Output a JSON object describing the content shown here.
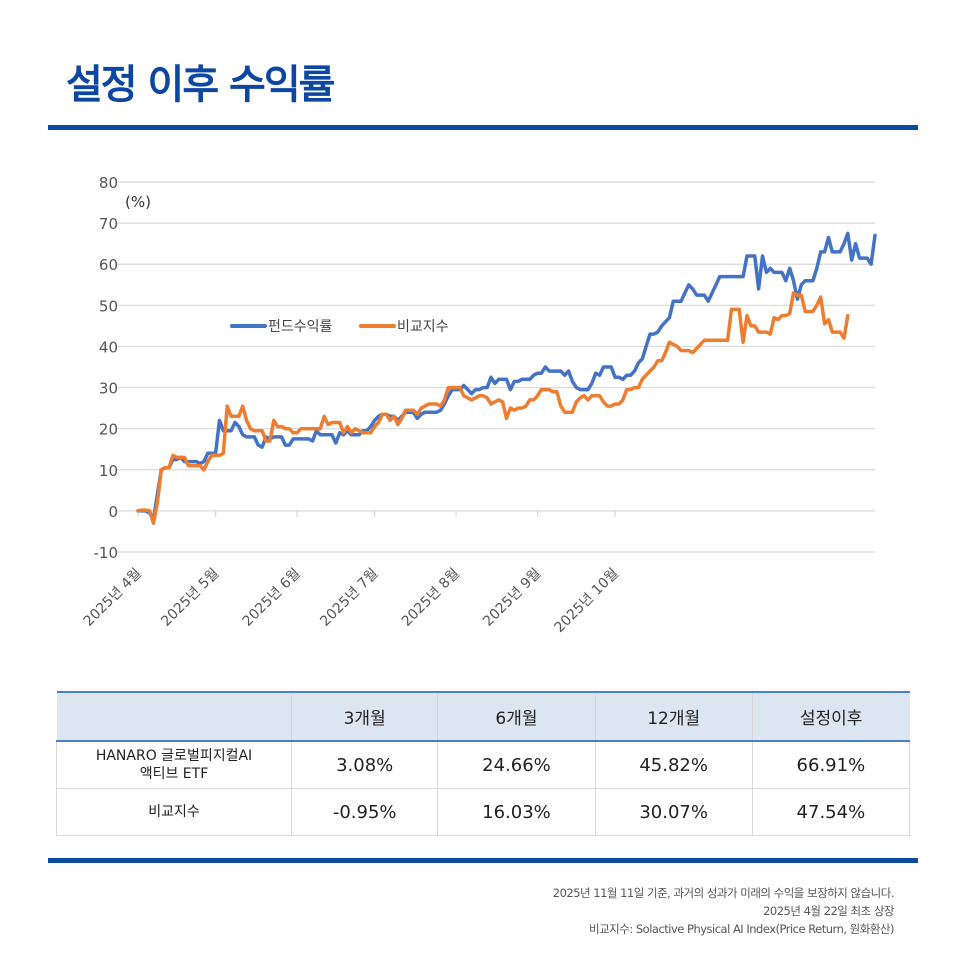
{
  "page": {
    "title": "설정 이후 수익률"
  },
  "chart_data": {
    "type": "line",
    "unit_label": "(%)",
    "ylim": [
      -10,
      80
    ],
    "yticks": [
      80,
      70,
      60,
      50,
      40,
      30,
      20,
      10,
      0,
      -10
    ],
    "xtick_labels": [
      "2025년 4월",
      "2025년 5월",
      "2025년 6월",
      "2025년 7월",
      "2025년 8월",
      "2025년 9월",
      "2025년 10월"
    ],
    "xtick_index": [
      0,
      20,
      41,
      61,
      82,
      103,
      123
    ],
    "grid": true,
    "legend": "center-left",
    "series": [
      {
        "name": "펀드수익률",
        "color": "#4472c4",
        "values": [
          0,
          0,
          0,
          -0.5,
          -2,
          4,
          10,
          10.5,
          10.5,
          12.5,
          12.5,
          13,
          12,
          12,
          12,
          12,
          11.5,
          12,
          14,
          14,
          14,
          22,
          19.5,
          19.5,
          19.5,
          21.5,
          20.5,
          18.5,
          18,
          18,
          18,
          16,
          15.5,
          18,
          17.5,
          18,
          18,
          18,
          16,
          16,
          17.5,
          17.5,
          17.5,
          17.5,
          17.5,
          17,
          19.5,
          18.5,
          18.5,
          18.5,
          18.5,
          16.5,
          19,
          18.5,
          19.5,
          18.5,
          18.5,
          18.5,
          19.5,
          19.5,
          20.5,
          22,
          23,
          23.5,
          23.5,
          23,
          23,
          22,
          23,
          24,
          24,
          24,
          22.5,
          23.5,
          24,
          24,
          24,
          24,
          24.5,
          26,
          28,
          29.5,
          29.5,
          29.5,
          30.5,
          29.5,
          28.5,
          29.5,
          29.5,
          30,
          30,
          32.5,
          31,
          32,
          32,
          32,
          29.5,
          31.5,
          31.5,
          32,
          32,
          32,
          33,
          33.5,
          33.5,
          35,
          34,
          34,
          34,
          34,
          33,
          34,
          31.5,
          30,
          29.5,
          29.5,
          29.5,
          31,
          33.5,
          33,
          35,
          35,
          35,
          32.5,
          32.5,
          32,
          33,
          33,
          34,
          36,
          37,
          40,
          43,
          43,
          43.5,
          45,
          46,
          47,
          51,
          51,
          51,
          53,
          55,
          54,
          52.5,
          52.5,
          52.5,
          51,
          53,
          55,
          57,
          57,
          57,
          57,
          57,
          57,
          57,
          62,
          62,
          62,
          54,
          62,
          58,
          59,
          58,
          58,
          58,
          56,
          59,
          56,
          51.5,
          55,
          56,
          56,
          56,
          59,
          63,
          63,
          66.5,
          63,
          63,
          63,
          65,
          67.5,
          61,
          65,
          61.5,
          61.5,
          61.5,
          60,
          67
        ]
      },
      {
        "name": "비교지수",
        "color": "#ed7d31",
        "values": [
          0,
          0.2,
          0.2,
          0,
          -3,
          2,
          10,
          10.5,
          10.5,
          13.5,
          13,
          13,
          13,
          11,
          11,
          11,
          11,
          10,
          12,
          13.5,
          13.5,
          13.5,
          14,
          25.5,
          23,
          23,
          23,
          25.5,
          22,
          20,
          19.5,
          19.5,
          19.5,
          17,
          17,
          22,
          20.5,
          20.5,
          20,
          20,
          19,
          19,
          20,
          20,
          20,
          20,
          20,
          20,
          23,
          21,
          21.5,
          21.5,
          21.5,
          19,
          20.5,
          19,
          20,
          19.5,
          19,
          19,
          19,
          20.5,
          21.5,
          23.5,
          23.5,
          22,
          23,
          21,
          22.5,
          24.5,
          24.5,
          24.5,
          23.5,
          25,
          25.5,
          26,
          26,
          26,
          25.5,
          27,
          30,
          30,
          30,
          30,
          28,
          27.5,
          27,
          27.5,
          28,
          28,
          27.5,
          26,
          26.5,
          27,
          26.5,
          22.5,
          25,
          24.5,
          25,
          25,
          25.5,
          27,
          27,
          28,
          29.5,
          29.5,
          29.5,
          29,
          29,
          25.5,
          24,
          24,
          24,
          26.5,
          27.5,
          28,
          27,
          28,
          28,
          28,
          26.5,
          25.5,
          25.5,
          26,
          26,
          27,
          29.5,
          29.5,
          30,
          30,
          32,
          33,
          34,
          35,
          36.5,
          36.5,
          38.5,
          41,
          40.5,
          40,
          39,
          39,
          39,
          38.5,
          39.5,
          40.5,
          41.5,
          41.5,
          41.5,
          41.5,
          41.5,
          41.5,
          41.5,
          49,
          49,
          49,
          41,
          47.5,
          45,
          45,
          43.5,
          43.5,
          43.5,
          43,
          47,
          46.5,
          47.5,
          47.5,
          48,
          53,
          52.5,
          52.5,
          48.5,
          48.5,
          48.5,
          50,
          52,
          45.5,
          46.5,
          43.5,
          43.5,
          43.5,
          42,
          47.5
        ]
      }
    ]
  },
  "table": {
    "headers": [
      "",
      "3개월",
      "6개월",
      "12개월",
      "설정이후"
    ],
    "rows": [
      {
        "name_line1": "HANARO 글로벌피지컬AI",
        "name_line2": "액티브 ETF",
        "values": [
          "3.08%",
          "24.66%",
          "45.82%",
          "66.91%"
        ]
      },
      {
        "name_line1": "비교지수",
        "name_line2": "",
        "values": [
          "-0.95%",
          "16.03%",
          "30.07%",
          "47.54%"
        ]
      }
    ]
  },
  "footer": {
    "line1": "2025년 11월 11일 기준, 과거의 성과가 미래의 수익을 보장하지 않습니다.",
    "line2": "2025년 4월 22일 최초 상장",
    "line3": "비교지수: Solactive Physical AI Index(Price Return, 원화환산)"
  }
}
